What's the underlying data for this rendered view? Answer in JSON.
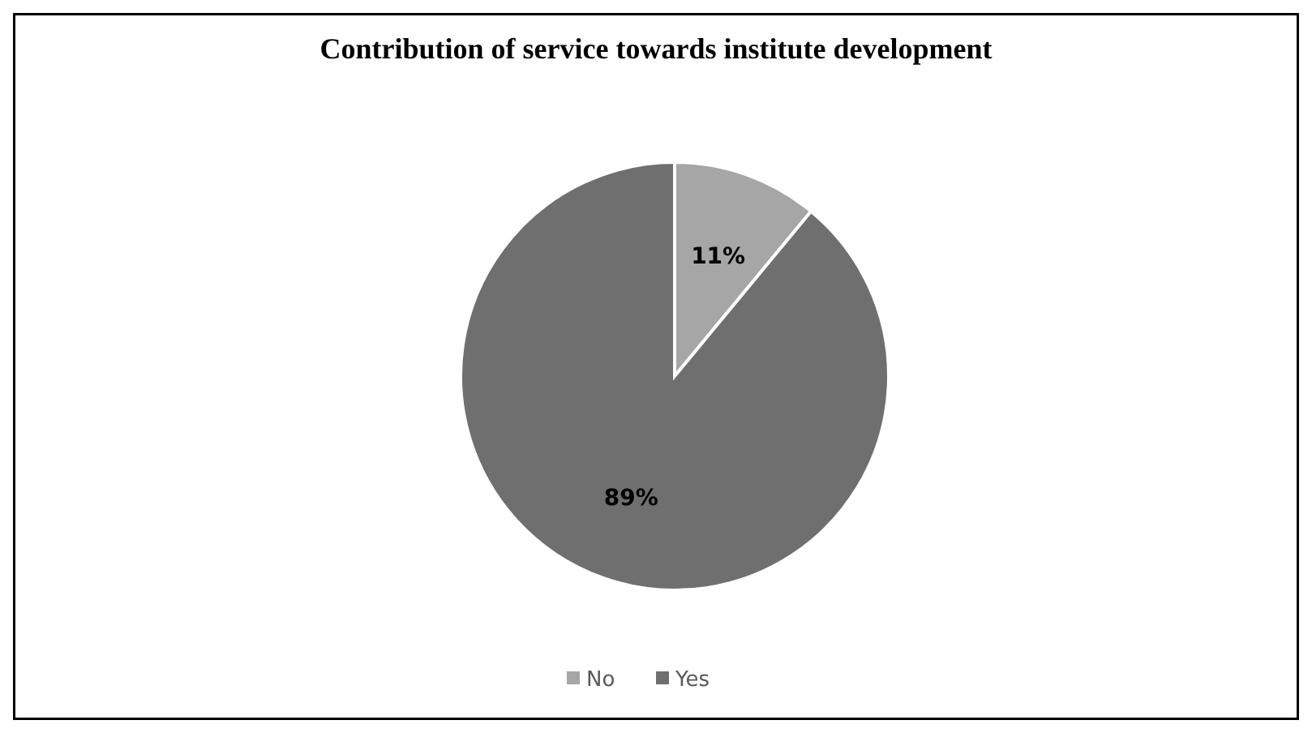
{
  "chart_data": {
    "type": "pie",
    "title": "Contribution of service towards institute development",
    "categories": [
      "No",
      "Yes"
    ],
    "values": [
      11,
      89
    ],
    "colors": [
      "#a6a6a6",
      "#6f6f6f"
    ],
    "value_labels": [
      "11%",
      "89%"
    ],
    "legend": "bottom"
  }
}
